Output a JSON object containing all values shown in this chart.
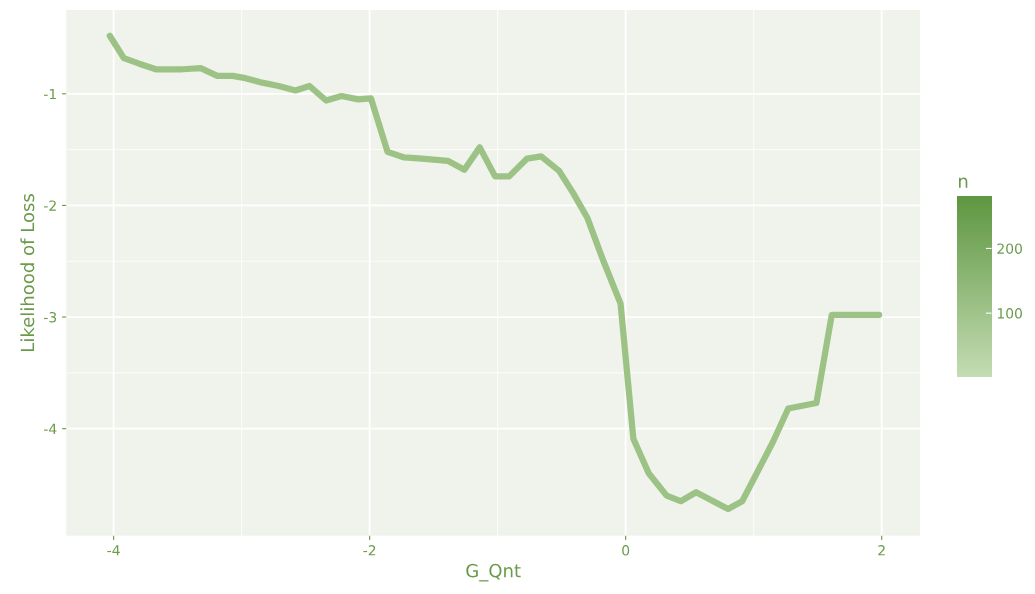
{
  "chart_data": {
    "type": "line",
    "xlabel": "G_Qnt",
    "ylabel": "Likelihood of Loss",
    "clabel": "n",
    "x": [
      -4.03,
      -3.92,
      -3.8,
      -3.67,
      -3.46,
      -3.32,
      -3.19,
      -3.07,
      -2.97,
      -2.84,
      -2.71,
      -2.58,
      -2.47,
      -2.34,
      -2.22,
      -2.09,
      -1.99,
      -1.86,
      -1.73,
      -1.59,
      -1.39,
      -1.26,
      -1.14,
      -1.02,
      -0.91,
      -0.77,
      -0.66,
      -0.52,
      -0.41,
      -0.3,
      -0.18,
      -0.04,
      0.06,
      0.18,
      0.32,
      0.43,
      0.55,
      0.8,
      0.91,
      1.15,
      1.27,
      1.49,
      1.61,
      1.98
    ],
    "values": [
      -0.48,
      -0.68,
      -0.73,
      -0.78,
      -0.78,
      -0.77,
      -0.84,
      -0.84,
      -0.86,
      -0.9,
      -0.93,
      -0.97,
      -0.93,
      -1.06,
      -1.02,
      -1.05,
      -1.04,
      -1.52,
      -1.57,
      -1.58,
      -1.6,
      -1.68,
      -1.48,
      -1.74,
      -1.74,
      -1.58,
      -1.56,
      -1.69,
      -1.89,
      -2.11,
      -2.48,
      -2.88,
      -4.09,
      -4.4,
      -4.6,
      -4.65,
      -4.57,
      -4.72,
      -4.65,
      -4.12,
      -3.82,
      -3.77,
      -2.98,
      -2.98
    ],
    "color": "#9cc385",
    "clim": [
      1,
      281
    ],
    "cticks": [
      100,
      200
    ],
    "xlim": [
      -4.37,
      2.3
    ],
    "ylim": [
      -4.96,
      -0.25
    ],
    "xticks": [
      -4,
      -2,
      0,
      2
    ],
    "yticks": [
      -4,
      -3,
      -2,
      -1
    ],
    "grid": true
  }
}
